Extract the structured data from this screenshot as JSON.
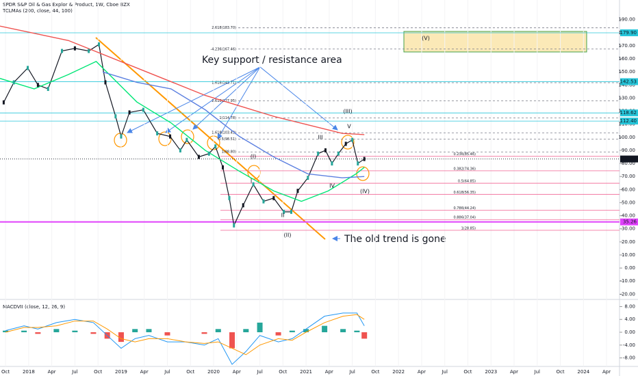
{
  "chart_data": [
    {
      "type": "line",
      "title": "SPDR S&P Oil & Gas Explor & Product, 1W, Cboe BZX",
      "subtitle": "TCLMAs (200, close, 44, 100)",
      "annotations": [
        "Key support / resistance area",
        "The old trend is gone"
      ],
      "wave_labels": [
        "(V)",
        "(III)",
        "(IV)",
        "(II)",
        "(I)",
        "III",
        "V",
        "IV",
        "II",
        "I"
      ],
      "xlim": [
        2017.69,
        2024.39
      ],
      "xticks": [
        {
          "value": 2017.75,
          "label": "Oct"
        },
        {
          "value": 2018,
          "label": "2018"
        },
        {
          "value": 2018.25,
          "label": "Apr"
        },
        {
          "value": 2018.5,
          "label": "Jul"
        },
        {
          "value": 2018.75,
          "label": "Oct"
        },
        {
          "value": 2019,
          "label": "2019"
        },
        {
          "value": 2019.25,
          "label": "Apr"
        },
        {
          "value": 2019.5,
          "label": "Jul"
        },
        {
          "value": 2019.75,
          "label": "Oct"
        },
        {
          "value": 2020,
          "label": "2020"
        },
        {
          "value": 2020.25,
          "label": "Apr"
        },
        {
          "value": 2020.5,
          "label": "Jul"
        },
        {
          "value": 2020.75,
          "label": "Oct"
        },
        {
          "value": 2021,
          "label": "2021"
        },
        {
          "value": 2021.25,
          "label": "Apr"
        },
        {
          "value": 2021.5,
          "label": "Jul"
        },
        {
          "value": 2021.75,
          "label": "Oct"
        },
        {
          "value": 2022,
          "label": "2022"
        },
        {
          "value": 2022.25,
          "label": "Apr"
        },
        {
          "value": 2022.5,
          "label": "Jul"
        },
        {
          "value": 2022.75,
          "label": "Oct"
        },
        {
          "value": 2023,
          "label": "2023"
        },
        {
          "value": 2023.25,
          "label": "Apr"
        },
        {
          "value": 2023.5,
          "label": "Jul"
        },
        {
          "value": 2023.75,
          "label": "Oct"
        },
        {
          "value": 2024,
          "label": "2024"
        },
        {
          "value": 2024.25,
          "label": "Apr"
        }
      ],
      "ylim": [
        -24,
        194
      ],
      "yticks": [
        {
          "value": 190,
          "label": "190.00"
        },
        {
          "value": 180,
          "label": "180.00"
        },
        {
          "value": 170,
          "label": "170.00"
        },
        {
          "value": 160,
          "label": "160.00"
        },
        {
          "value": 150,
          "label": "150.00"
        },
        {
          "value": 140,
          "label": "140.00"
        },
        {
          "value": 130,
          "label": "130.00"
        },
        {
          "value": 120,
          "label": "120.00"
        },
        {
          "value": 110,
          "label": "110.00"
        },
        {
          "value": 100,
          "label": "100.00"
        },
        {
          "value": 90,
          "label": "90.00"
        },
        {
          "value": 80,
          "label": "80.00"
        },
        {
          "value": 70,
          "label": "70.00"
        },
        {
          "value": 60,
          "label": "60.00"
        },
        {
          "value": 50,
          "label": "50.00"
        },
        {
          "value": 40,
          "label": "40.00"
        },
        {
          "value": 30,
          "label": "30.00"
        },
        {
          "value": 20,
          "label": "20.00"
        },
        {
          "value": 10,
          "label": "10.00"
        },
        {
          "value": 0,
          "label": "0.00"
        },
        {
          "value": -10,
          "label": "-10.00"
        },
        {
          "value": -20,
          "label": "-20.00"
        }
      ],
      "price_labels": [
        {
          "value": 179.9,
          "label": "179.90",
          "color": "#26c6da"
        },
        {
          "value": 142.53,
          "label": "142.53",
          "color": "#26c6da"
        },
        {
          "value": 118.62,
          "label": "118.62",
          "color": "#26c6da"
        },
        {
          "value": 112.4,
          "label": "112.40",
          "color": "#26c6da"
        },
        {
          "value": 83.4,
          "label": "83.40",
          "color": "#131722"
        },
        {
          "value": 35.26,
          "label": "35.26",
          "color": "#e040fb"
        }
      ],
      "fib_levels": [
        {
          "value": 183.7,
          "label": "2.618(183.70)",
          "color": "#787b86"
        },
        {
          "value": 167.46,
          "label": "-4.236(167.46)",
          "color": "#787b86"
        },
        {
          "value": 141.71,
          "label": "1.618(141.71)",
          "color": "#787b86"
        },
        {
          "value": 127.95,
          "label": "2.618(127.95)",
          "color": "#787b86"
        },
        {
          "value": 114.78,
          "label": "1(114.78)",
          "color": "#787b86"
        },
        {
          "value": 103.43,
          "label": "1.618(103.43)",
          "color": "#787b86"
        },
        {
          "value": 98.51,
          "label": "0.5(98.51)",
          "color": "#787b86"
        },
        {
          "value": 88.8,
          "label": "1(88.80)",
          "color": "#787b86"
        },
        {
          "value": 85.46,
          "label": "0.236(85.46)",
          "color": "#f06292"
        },
        {
          "value": 74.36,
          "label": "0.382(74.36)",
          "color": "#f06292"
        },
        {
          "value": 64.85,
          "label": "0.5(64.85)",
          "color": "#f06292"
        },
        {
          "value": 56.35,
          "label": "0.618(56.35)",
          "color": "#f06292"
        },
        {
          "value": 44.24,
          "label": "0.786(44.24)",
          "color": "#f06292"
        },
        {
          "value": 37.04,
          "label": "0.886(37.04)",
          "color": "#f06292"
        },
        {
          "value": 28.85,
          "label": "1(28.85)",
          "color": "#f06292"
        }
      ],
      "series": [
        {
          "color": "#131722",
          "x": [
            2017.73,
            2017.84,
            2017.99,
            2018.1,
            2018.21,
            2018.36,
            2018.5,
            2018.65,
            2018.76,
            2018.83,
            2018.94,
            2019.0,
            2019.09,
            2019.24,
            2019.39,
            2019.53,
            2019.64,
            2019.71,
            2019.84,
            2019.95,
            2020.02,
            2020.1,
            2020.17,
            2020.22,
            2020.32,
            2020.43,
            2020.54,
            2020.65,
            2020.76,
            2020.84,
            2020.91,
            2021.02,
            2021.13,
            2021.21,
            2021.28,
            2021.35,
            2021.43,
            2021.5,
            2021.56,
            2021.63
          ],
          "values": [
            126.7,
            142,
            153,
            140,
            137,
            166,
            168,
            166,
            171,
            142,
            116,
            100.6,
            119,
            121,
            103,
            100.6,
            90,
            98,
            85,
            87.5,
            93,
            77,
            53.5,
            32.6,
            48,
            64,
            51,
            53.5,
            43,
            43,
            59,
            69,
            87.5,
            90,
            80,
            87.5,
            95,
            98,
            80,
            83.4
          ]
        },
        {
          "color": "#ef5350",
          "x": [
            2017.69,
            2018.43,
            2019.17,
            2019.91,
            2020.65,
            2021.39,
            2021.63
          ],
          "values": [
            185,
            174,
            153,
            132,
            116,
            103,
            102
          ]
        },
        {
          "color": "#00e676",
          "x": [
            2017.69,
            2018.06,
            2018.43,
            2018.73,
            2019.17,
            2019.54,
            2019.91,
            2020.28,
            2020.65,
            2020.95,
            2021.24,
            2021.54,
            2021.63
          ],
          "values": [
            145,
            137,
            148,
            158,
            127,
            111,
            90,
            74,
            59,
            51,
            59,
            72,
            77
          ]
        },
        {
          "color": "#5b7fe0",
          "x": [
            2018.8,
            2019.17,
            2019.54,
            2019.91,
            2020.28,
            2020.65,
            2021.02,
            2021.39,
            2021.63
          ],
          "values": [
            150,
            142,
            137,
            121,
            100.6,
            85,
            72,
            69,
            70
          ]
        }
      ]
    },
    {
      "type": "macd",
      "title": "MACDVII (close, 12, 26, 9)",
      "xlim": [
        2017.69,
        2024.39
      ],
      "ylim": [
        -9.8,
        9.8
      ],
      "yticks": [
        {
          "value": 8,
          "label": "8.00"
        },
        {
          "value": 4,
          "label": "4.00"
        },
        {
          "value": 0,
          "label": "0.00"
        },
        {
          "value": -4,
          "label": "-4.00"
        },
        {
          "value": -8,
          "label": "-8.00"
        }
      ],
      "x": [
        2017.75,
        2017.95,
        2018.1,
        2018.3,
        2018.5,
        2018.7,
        2018.85,
        2019.0,
        2019.15,
        2019.3,
        2019.5,
        2019.7,
        2019.9,
        2020.05,
        2020.2,
        2020.35,
        2020.5,
        2020.7,
        2020.85,
        2021.0,
        2021.2,
        2021.4,
        2021.55,
        2021.63
      ],
      "histogram": [
        0.5,
        0.5,
        -0.5,
        1,
        0.5,
        -0.5,
        -2,
        -3,
        1,
        1,
        -1,
        0,
        -0.5,
        1,
        -5,
        1,
        3,
        -1,
        0.5,
        1,
        2,
        1,
        0.5,
        -2
      ],
      "series": [
        {
          "color": "#2196f3",
          "values": [
            0.5,
            2,
            1,
            3,
            4,
            3,
            -1,
            -5,
            -2,
            -1,
            -3,
            -3,
            -4,
            -2,
            -10,
            -6,
            -1,
            -3,
            -2,
            1,
            5,
            6,
            6,
            2
          ]
        },
        {
          "color": "#ff9800",
          "values": [
            0,
            1.5,
            1.5,
            2,
            3.5,
            3.5,
            1,
            -2,
            -3,
            -2,
            -2,
            -3,
            -3.5,
            -3,
            -5,
            -7,
            -4,
            -2,
            -2.5,
            0,
            3,
            5,
            5.5,
            4
          ]
        }
      ]
    }
  ]
}
